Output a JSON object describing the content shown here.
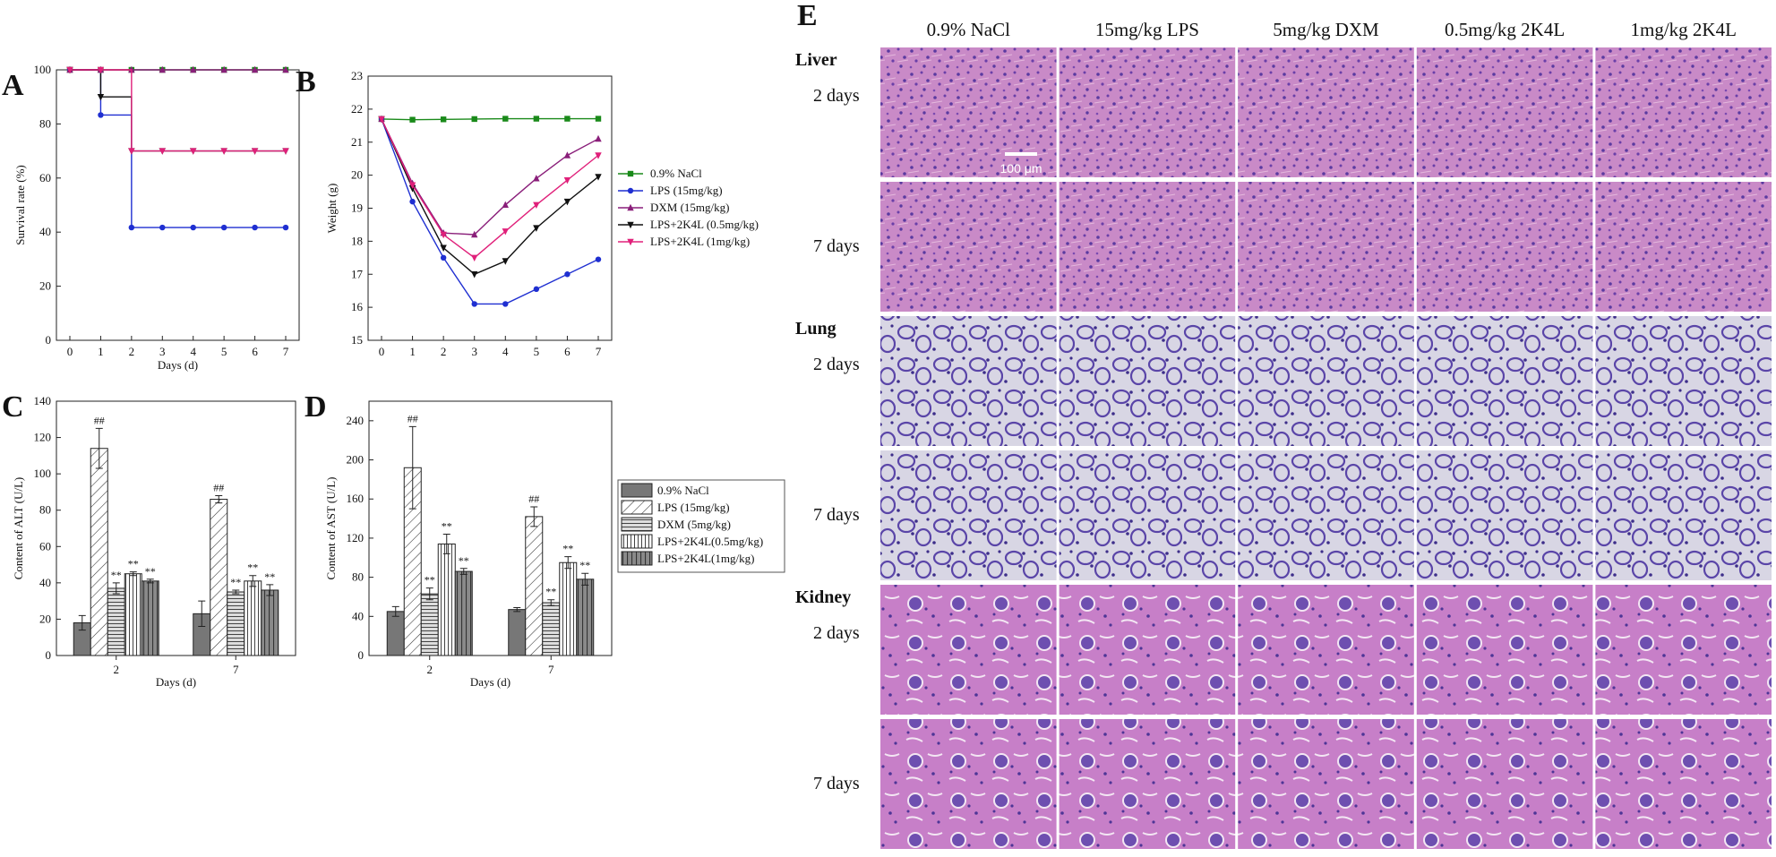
{
  "figure": {
    "panel_labels": [
      "A",
      "B",
      "C",
      "D",
      "E"
    ],
    "legend_ab": [
      "0.9% NaCl",
      "LPS (15mg/kg)",
      "DXM (15mg/kg)",
      "LPS+2K4L (0.5mg/kg)",
      "LPS+2K4L (1mg/kg)"
    ],
    "legend_cd": [
      "0.9% NaCl",
      "LPS (15mg/kg)",
      "DXM (5mg/kg)",
      "LPS+2K4L(0.5mg/kg)",
      "LPS+2K4L(1mg/kg)"
    ],
    "colors": {
      "nacl": "#1a8a1a",
      "lps": "#1f2fd1",
      "dxm": "#8a1f7a",
      "k05": "#111111",
      "k1": "#e0207a"
    }
  },
  "histology": {
    "columns": [
      "0.9% NaCl",
      "15mg/kg LPS",
      "5mg/kg DXM",
      "0.5mg/kg 2K4L",
      "1mg/kg 2K4L"
    ],
    "organs": [
      {
        "name": "Liver",
        "rows": [
          "2 days",
          "7 days"
        ]
      },
      {
        "name": "Lung",
        "rows": [
          "2 days",
          "7 days"
        ]
      },
      {
        "name": "Kidney",
        "rows": [
          "2 days",
          "7 days"
        ]
      }
    ],
    "scale_bar": "100 μm"
  },
  "chart_data": [
    {
      "panel": "A",
      "type": "line",
      "title": "",
      "xlabel": "Days (d)",
      "ylabel": "Survival rate (%)",
      "xlim": [
        0,
        7
      ],
      "ylim": [
        0,
        100
      ],
      "xticks": [
        0,
        1,
        2,
        3,
        4,
        5,
        6,
        7
      ],
      "yticks": [
        0,
        20,
        40,
        60,
        80,
        100
      ],
      "x": [
        0,
        1,
        2,
        3,
        4,
        5,
        6,
        7
      ],
      "series": [
        {
          "name": "0.9% NaCl",
          "values": [
            100,
            100,
            100,
            100,
            100,
            100,
            100,
            100
          ]
        },
        {
          "name": "LPS (15mg/kg)",
          "values": [
            100,
            83.3,
            41.7,
            41.7,
            41.7,
            41.7,
            41.7,
            41.7
          ]
        },
        {
          "name": "DXM (15mg/kg)",
          "values": [
            100,
            100,
            100,
            100,
            100,
            100,
            100,
            100
          ]
        },
        {
          "name": "LPS+2K4L (0.5mg/kg)",
          "values": [
            100,
            90,
            70,
            70,
            70,
            70,
            70,
            70
          ]
        },
        {
          "name": "LPS+2K4L (1mg/kg)",
          "values": [
            100,
            100,
            70,
            70,
            70,
            70,
            70,
            70
          ]
        }
      ]
    },
    {
      "panel": "B",
      "type": "line",
      "title": "",
      "xlabel": "",
      "ylabel": "Weight (g)",
      "xlim": [
        0,
        7
      ],
      "ylim": [
        15,
        23
      ],
      "xticks": [
        0,
        1,
        2,
        3,
        4,
        5,
        6,
        7
      ],
      "yticks": [
        15,
        16,
        17,
        18,
        19,
        20,
        21,
        22,
        23
      ],
      "x": [
        0,
        1,
        2,
        3,
        4,
        5,
        6,
        7
      ],
      "series": [
        {
          "name": "0.9% NaCl",
          "values": [
            21.7,
            21.68,
            21.69,
            21.7,
            21.71,
            21.71,
            21.71,
            21.71
          ]
        },
        {
          "name": "LPS (15mg/kg)",
          "values": [
            21.7,
            19.2,
            17.5,
            16.1,
            16.1,
            16.55,
            17.0,
            17.45
          ]
        },
        {
          "name": "DXM (15mg/kg)",
          "values": [
            21.7,
            19.75,
            18.25,
            18.2,
            19.1,
            19.9,
            20.6,
            21.1
          ]
        },
        {
          "name": "LPS+2K4L (0.5mg/kg)",
          "values": [
            21.7,
            19.6,
            17.8,
            17.0,
            17.4,
            18.4,
            19.2,
            19.95
          ]
        },
        {
          "name": "LPS+2K4L (1mg/kg)",
          "values": [
            21.7,
            19.7,
            18.2,
            17.5,
            18.3,
            19.1,
            19.85,
            20.6
          ]
        }
      ]
    },
    {
      "panel": "C",
      "type": "bar",
      "xlabel": "Days (d)",
      "ylabel": "Content of ALT (U/L)",
      "ylim": [
        0,
        140
      ],
      "yticks": [
        0,
        20,
        40,
        60,
        80,
        100,
        120,
        140
      ],
      "categories": [
        "2",
        "7"
      ],
      "series": [
        {
          "name": "0.9% NaCl",
          "values": [
            18,
            23
          ],
          "errors": [
            4,
            7
          ],
          "marks": [
            "",
            ""
          ]
        },
        {
          "name": "LPS (15mg/kg)",
          "values": [
            114,
            86
          ],
          "errors": [
            11,
            2
          ],
          "marks": [
            "##",
            "##"
          ]
        },
        {
          "name": "DXM (5mg/kg)",
          "values": [
            37,
            35
          ],
          "errors": [
            3,
            1
          ],
          "marks": [
            "**",
            "**"
          ]
        },
        {
          "name": "LPS+2K4L(0.5mg/kg)",
          "values": [
            45,
            41
          ],
          "errors": [
            1,
            3
          ],
          "marks": [
            "**",
            "**"
          ]
        },
        {
          "name": "LPS+2K4L(1mg/kg)",
          "values": [
            41,
            36
          ],
          "errors": [
            1,
            3
          ],
          "marks": [
            "**",
            "**"
          ]
        }
      ]
    },
    {
      "panel": "D",
      "type": "bar",
      "xlabel": "Days (d)",
      "ylabel": "Content of AST (U/L)",
      "ylim": [
        0,
        260
      ],
      "yticks": [
        0,
        40,
        80,
        120,
        160,
        200,
        240
      ],
      "categories": [
        "2",
        "7"
      ],
      "series": [
        {
          "name": "0.9% NaCl",
          "values": [
            45,
            47
          ],
          "errors": [
            5,
            2
          ],
          "marks": [
            "",
            ""
          ]
        },
        {
          "name": "LPS (15mg/kg)",
          "values": [
            192,
            142
          ],
          "errors": [
            42,
            10
          ],
          "marks": [
            "##",
            "##"
          ]
        },
        {
          "name": "DXM (5mg/kg)",
          "values": [
            63,
            54
          ],
          "errors": [
            6,
            3
          ],
          "marks": [
            "**",
            "**"
          ]
        },
        {
          "name": "LPS+2K4L(0.5mg/kg)",
          "values": [
            114,
            95
          ],
          "errors": [
            10,
            6
          ],
          "marks": [
            "**",
            "**"
          ]
        },
        {
          "name": "LPS+2K4L(1mg/kg)",
          "values": [
            86,
            78
          ],
          "errors": [
            3,
            6
          ],
          "marks": [
            "**",
            "**"
          ]
        }
      ]
    }
  ]
}
